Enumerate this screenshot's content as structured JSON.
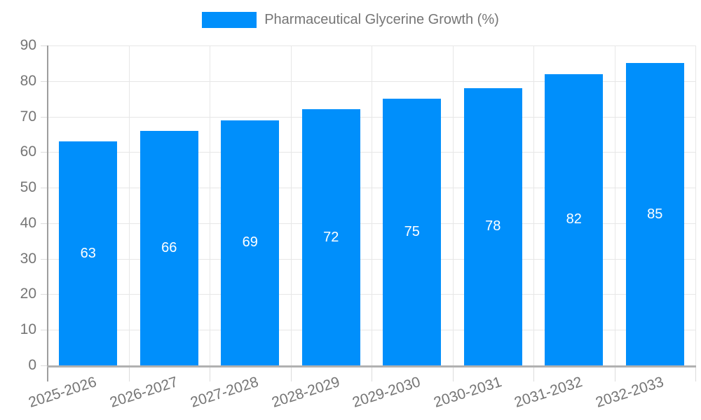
{
  "chart_data": {
    "type": "bar",
    "title": "Pharmaceutical Glycerine Growth (%)",
    "categories": [
      "2025-2026",
      "2026-2027",
      "2027-2028",
      "2028-2029",
      "2029-2030",
      "2030-2031",
      "2031-2032",
      "2032-2033"
    ],
    "values": [
      63,
      66,
      69,
      72,
      75,
      78,
      82,
      85
    ],
    "xlabel": "",
    "ylabel": "",
    "ylim": [
      0,
      90
    ],
    "yticks": [
      0,
      10,
      20,
      30,
      40,
      50,
      60,
      70,
      80,
      90
    ],
    "grid": true,
    "legend_position": "top",
    "value_labels": "inside-center",
    "bar_color": "#008FFB",
    "value_label_color": "#ffffff",
    "axis_text_color": "#757575",
    "gridline_color": "#e7e7e7"
  }
}
